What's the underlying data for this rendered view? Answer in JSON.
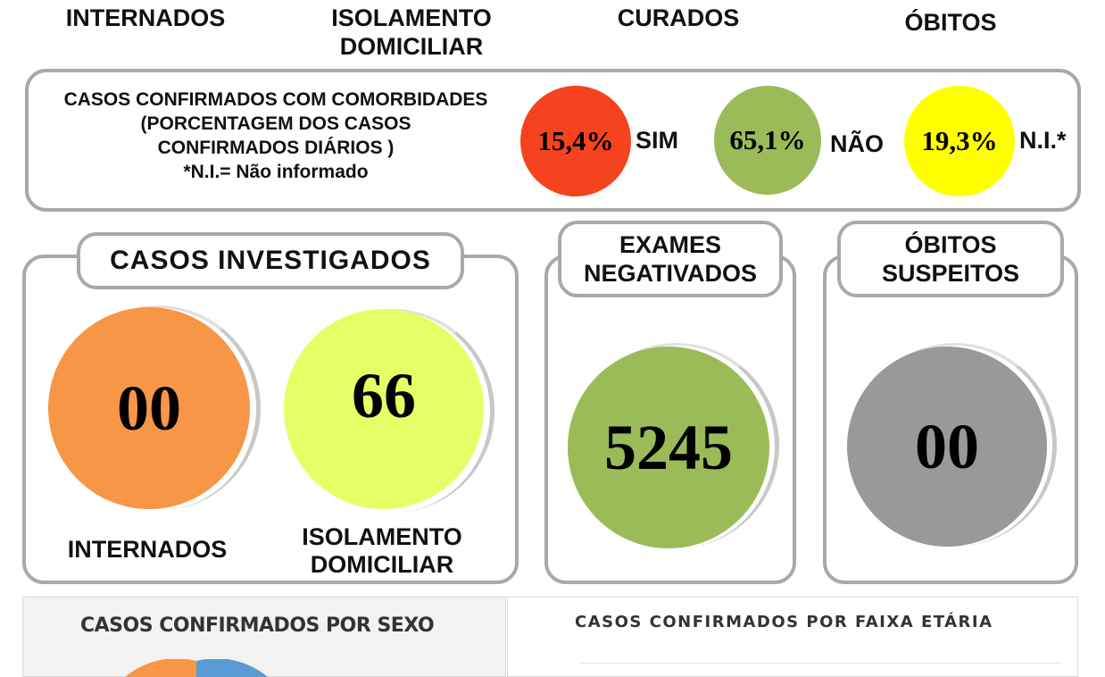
{
  "header": {
    "internados": "INTERNADOS",
    "isolamento": "ISOLAMENTO\nDOMICILIAR",
    "curados": "CURADOS",
    "obitos": "ÓBITOS"
  },
  "comorbidades": {
    "text": "CASOS CONFIRMADOS COM COMORBIDADES\n(PORCENTAGEM DOS CASOS\nCONFIRMADOS DIÁRIOS )\n*N.I.= Não informado",
    "items": [
      {
        "value": "15,4%",
        "label": "SIM",
        "color": "#f5431f"
      },
      {
        "value": "65,1%",
        "label": "NÃO",
        "color": "#9bbb59"
      },
      {
        "value": "19,3%",
        "label": "N.I.*",
        "color": "#ffff00"
      }
    ]
  },
  "investigados": {
    "title": "CASOS INVESTIGADOS",
    "internados": {
      "value": "00",
      "label": "INTERNADOS",
      "color": "#f79646"
    },
    "isolamento": {
      "value": "66",
      "label": "ISOLAMENTO\nDOMICILIAR",
      "color": "#e6ff66"
    }
  },
  "exames": {
    "title": "EXAMES\nNEGATIVADOS",
    "value": "5245",
    "color": "#9bbb59"
  },
  "obitos_suspeitos": {
    "title": "ÓBITOS\nSUSPEITOS",
    "value": "00",
    "color": "#999999"
  },
  "bottom": {
    "sexo_title": "CASOS CONFIRMADOS POR SEXO",
    "faixa_title": "CASOS CONFIRMADOS POR FAIXA ETÁRIA"
  }
}
